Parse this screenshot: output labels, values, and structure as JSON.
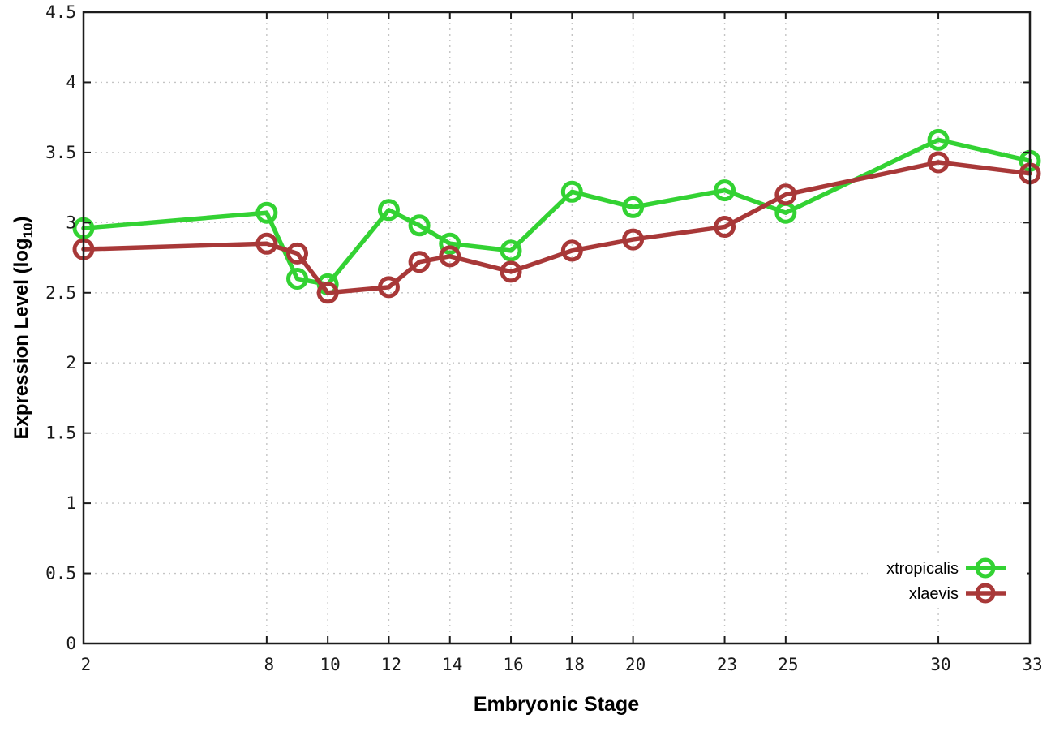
{
  "chart_data": {
    "type": "line",
    "title": "",
    "xlabel": "Embryonic Stage",
    "ylabel": "Expression Level (log10)",
    "ylabel_parts": {
      "pre": "Expression Level (log",
      "sub": "10",
      "post": ")"
    },
    "x": [
      2,
      8,
      9,
      10,
      12,
      13,
      14,
      16,
      18,
      20,
      23,
      25,
      30,
      33
    ],
    "series": [
      {
        "name": "xtropicalis",
        "color": "#33d233",
        "values": [
          2.96,
          3.07,
          2.6,
          2.56,
          3.09,
          2.98,
          2.85,
          2.8,
          3.22,
          3.11,
          3.23,
          3.07,
          3.59,
          3.44
        ]
      },
      {
        "name": "xlaevis",
        "color": "#a83838",
        "values": [
          2.81,
          2.85,
          2.78,
          2.5,
          2.54,
          2.72,
          2.76,
          2.65,
          2.8,
          2.88,
          2.97,
          3.2,
          3.43,
          3.35
        ]
      }
    ],
    "xlim": [
      2,
      33
    ],
    "ylim": [
      0,
      4.5
    ],
    "xticks": [
      2,
      8,
      10,
      12,
      14,
      16,
      18,
      20,
      23,
      25,
      30,
      33
    ],
    "xtick_labels": [
      "2",
      "8",
      "10",
      "12",
      "14",
      "16",
      "18",
      "20",
      "23",
      "25",
      "30",
      "33"
    ],
    "yticks": [
      0,
      0.5,
      1,
      1.5,
      2,
      2.5,
      3,
      3.5,
      4,
      4.5
    ],
    "ytick_labels": [
      "0",
      "0.5",
      "1",
      "1.5",
      "2",
      "2.5",
      "3",
      "3.5",
      "4",
      "4.5"
    ],
    "grid": true,
    "legend_position": "inside-bottom-right",
    "colors": {
      "background": "#ffffff",
      "border": "#1c1c1c",
      "gridline": "#c4c4c4",
      "tick_text": "#1a1a1a"
    }
  }
}
